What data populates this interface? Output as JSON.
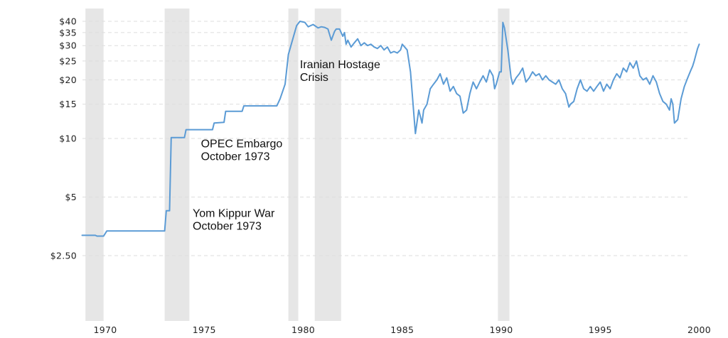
{
  "chart_data": {
    "type": "line",
    "title": "",
    "xlabel": "",
    "ylabel": "",
    "x_axis": {
      "type": "time",
      "range": [
        "1968-11",
        "2000-01"
      ],
      "ticks": [
        {
          "value": "1970-01",
          "label": "1970"
        },
        {
          "value": "1975-01",
          "label": "1975"
        },
        {
          "value": "1980-01",
          "label": "1980"
        },
        {
          "value": "1985-01",
          "label": "1985"
        },
        {
          "value": "1990-01",
          "label": "1990"
        },
        {
          "value": "1995-01",
          "label": "1995"
        },
        {
          "value": "2000-01",
          "label": "2000"
        }
      ]
    },
    "y_axis": {
      "scale": "log",
      "range": [
        1.36,
        46
      ],
      "ticks": [
        {
          "value": 2.5,
          "label": "$2.50"
        },
        {
          "value": 5,
          "label": "$5"
        },
        {
          "value": 10,
          "label": "$10"
        },
        {
          "value": 15,
          "label": "$15"
        },
        {
          "value": 20,
          "label": "$20"
        },
        {
          "value": 25,
          "label": "$25"
        },
        {
          "value": 30,
          "label": "$30"
        },
        {
          "value": 35,
          "label": "$35"
        },
        {
          "value": 40,
          "label": "$40"
        }
      ],
      "grid": true
    },
    "colors": {
      "line": "#5b9bd5",
      "shading": "#e6e6e6",
      "grid": "#dddddd"
    },
    "shaded_periods": [
      {
        "start": "1969-01",
        "end": "1969-12"
      },
      {
        "start": "1973-01",
        "end": "1974-04"
      },
      {
        "start": "1979-04",
        "end": "1979-10"
      },
      {
        "start": "1980-08",
        "end": "1981-12"
      },
      {
        "start": "1989-11",
        "end": "1990-06"
      }
    ],
    "annotations": [
      {
        "lines": [
          "Yom Kippur War",
          "October 1973"
        ],
        "x": "1974-06",
        "y": 3.95
      },
      {
        "lines": [
          "OPEC Embargo",
          "October 1973"
        ],
        "x": "1974-11",
        "y": 9.0
      },
      {
        "lines": [
          "Iranian Hostage",
          "Crisis"
        ],
        "x": "1979-11",
        "y": 23.0
      }
    ],
    "series": [
      {
        "points": [
          [
            "1968-11",
            3.18
          ],
          [
            "1969-07",
            3.18
          ],
          [
            "1969-08",
            3.15
          ],
          [
            "1969-12",
            3.15
          ],
          [
            "1970-02",
            3.35
          ],
          [
            "1972-12",
            3.35
          ],
          [
            "1973-01",
            3.35
          ],
          [
            "1973-02",
            4.25
          ],
          [
            "1973-04",
            4.25
          ],
          [
            "1973-05",
            10.1
          ],
          [
            "1974-01",
            10.1
          ],
          [
            "1974-02",
            11.1
          ],
          [
            "1975-06",
            11.1
          ],
          [
            "1975-07",
            12.0
          ],
          [
            "1976-01",
            12.1
          ],
          [
            "1976-02",
            13.8
          ],
          [
            "1976-12",
            13.8
          ],
          [
            "1977-01",
            14.7
          ],
          [
            "1978-09",
            14.7
          ],
          [
            "1978-11",
            16.0
          ],
          [
            "1979-02",
            19.0
          ],
          [
            "1979-04",
            27.0
          ],
          [
            "1979-06",
            31.0
          ],
          [
            "1979-09",
            38.0
          ],
          [
            "1979-11",
            40.0
          ],
          [
            "1980-02",
            39.5
          ],
          [
            "1980-04",
            37.5
          ],
          [
            "1980-07",
            38.5
          ],
          [
            "1980-10",
            37.0
          ],
          [
            "1980-12",
            37.5
          ],
          [
            "1981-02",
            37.2
          ],
          [
            "1981-04",
            36.5
          ],
          [
            "1981-06",
            32.0
          ],
          [
            "1981-08",
            35.5
          ],
          [
            "1981-09",
            36.5
          ],
          [
            "1981-11",
            36.5
          ],
          [
            "1982-01",
            33.5
          ],
          [
            "1982-02",
            35.0
          ],
          [
            "1982-03",
            30.5
          ],
          [
            "1982-04",
            32.0
          ],
          [
            "1982-06",
            29.5
          ],
          [
            "1982-08",
            31.0
          ],
          [
            "1982-10",
            32.5
          ],
          [
            "1982-12",
            30.0
          ],
          [
            "1983-02",
            31.0
          ],
          [
            "1983-04",
            30.0
          ],
          [
            "1983-06",
            30.5
          ],
          [
            "1983-08",
            29.5
          ],
          [
            "1983-10",
            29.0
          ],
          [
            "1983-12",
            30.0
          ],
          [
            "1984-02",
            28.5
          ],
          [
            "1984-04",
            29.5
          ],
          [
            "1984-06",
            27.5
          ],
          [
            "1984-08",
            28.0
          ],
          [
            "1984-10",
            27.5
          ],
          [
            "1984-12",
            28.5
          ],
          [
            "1985-01",
            30.5
          ],
          [
            "1985-04",
            28.5
          ],
          [
            "1985-06",
            22.0
          ],
          [
            "1985-08",
            13.5
          ],
          [
            "1985-09",
            10.6
          ],
          [
            "1985-11",
            14.0
          ],
          [
            "1986-01",
            12.0
          ],
          [
            "1986-02",
            14.0
          ],
          [
            "1986-04",
            15.0
          ],
          [
            "1986-06",
            18.0
          ],
          [
            "1986-08",
            19.0
          ],
          [
            "1986-10",
            20.0
          ],
          [
            "1986-12",
            21.5
          ],
          [
            "1987-02",
            19.0
          ],
          [
            "1987-04",
            20.5
          ],
          [
            "1987-06",
            17.5
          ],
          [
            "1987-08",
            18.5
          ],
          [
            "1987-10",
            17.0
          ],
          [
            "1987-12",
            16.5
          ],
          [
            "1988-02",
            13.5
          ],
          [
            "1988-04",
            14.0
          ],
          [
            "1988-06",
            17.0
          ],
          [
            "1988-08",
            19.5
          ],
          [
            "1988-10",
            18.0
          ],
          [
            "1988-12",
            19.5
          ],
          [
            "1989-02",
            21.0
          ],
          [
            "1989-04",
            19.5
          ],
          [
            "1989-06",
            22.5
          ],
          [
            "1989-08",
            21.0
          ],
          [
            "1989-09",
            18.0
          ],
          [
            "1989-10",
            19.0
          ],
          [
            "1989-12",
            22.0
          ],
          [
            "1990-01",
            22.0
          ],
          [
            "1990-02",
            39.5
          ],
          [
            "1990-03",
            37.0
          ],
          [
            "1990-05",
            28.5
          ],
          [
            "1990-07",
            20.5
          ],
          [
            "1990-08",
            19.0
          ],
          [
            "1990-10",
            20.5
          ],
          [
            "1990-12",
            21.5
          ],
          [
            "1991-02",
            23.0
          ],
          [
            "1991-04",
            19.5
          ],
          [
            "1991-06",
            20.5
          ],
          [
            "1991-08",
            22.0
          ],
          [
            "1991-10",
            21.0
          ],
          [
            "1991-12",
            21.5
          ],
          [
            "1992-02",
            20.0
          ],
          [
            "1992-04",
            21.0
          ],
          [
            "1992-06",
            20.0
          ],
          [
            "1992-08",
            19.5
          ],
          [
            "1992-10",
            19.0
          ],
          [
            "1992-12",
            20.0
          ],
          [
            "1993-02",
            18.0
          ],
          [
            "1993-04",
            17.0
          ],
          [
            "1993-06",
            14.5
          ],
          [
            "1993-07",
            15.0
          ],
          [
            "1993-09",
            15.5
          ],
          [
            "1993-11",
            18.0
          ],
          [
            "1994-01",
            20.0
          ],
          [
            "1994-03",
            18.0
          ],
          [
            "1994-05",
            17.5
          ],
          [
            "1994-07",
            18.5
          ],
          [
            "1994-09",
            17.5
          ],
          [
            "1994-11",
            18.5
          ],
          [
            "1995-01",
            19.5
          ],
          [
            "1995-03",
            17.5
          ],
          [
            "1995-05",
            19.0
          ],
          [
            "1995-07",
            18.0
          ],
          [
            "1995-09",
            20.0
          ],
          [
            "1995-11",
            21.5
          ],
          [
            "1996-01",
            20.5
          ],
          [
            "1996-03",
            23.0
          ],
          [
            "1996-05",
            22.0
          ],
          [
            "1996-07",
            24.5
          ],
          [
            "1996-09",
            23.0
          ],
          [
            "1996-11",
            25.0
          ],
          [
            "1997-01",
            21.0
          ],
          [
            "1997-03",
            20.0
          ],
          [
            "1997-05",
            20.5
          ],
          [
            "1997-07",
            19.0
          ],
          [
            "1997-09",
            21.0
          ],
          [
            "1997-11",
            19.5
          ],
          [
            "1998-01",
            17.0
          ],
          [
            "1998-03",
            15.5
          ],
          [
            "1998-05",
            15.0
          ],
          [
            "1998-07",
            14.0
          ],
          [
            "1998-08",
            16.0
          ],
          [
            "1998-09",
            15.0
          ],
          [
            "1998-10",
            12.0
          ],
          [
            "1998-12",
            12.5
          ],
          [
            "1999-02",
            16.0
          ],
          [
            "1999-04",
            18.5
          ],
          [
            "1999-06",
            20.5
          ],
          [
            "1999-08",
            22.5
          ],
          [
            "1999-09",
            23.5
          ],
          [
            "1999-10",
            25.0
          ],
          [
            "1999-12",
            29.0
          ],
          [
            "2000-01",
            30.5
          ]
        ]
      }
    ]
  }
}
